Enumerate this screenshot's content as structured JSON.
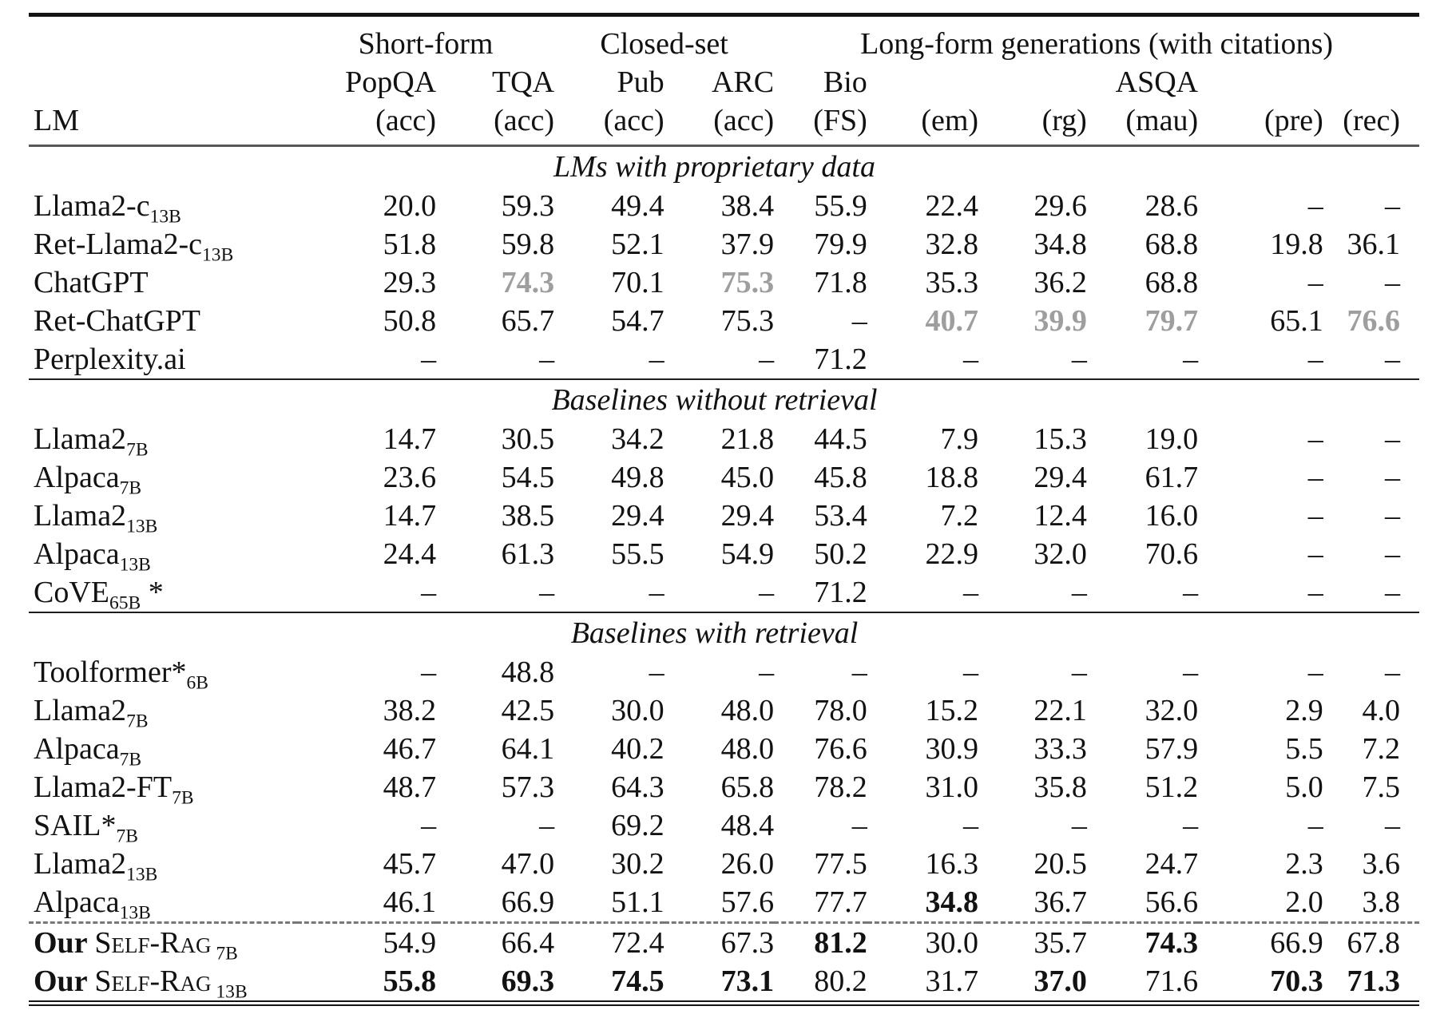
{
  "header": {
    "lm_label": "LM",
    "groups": [
      {
        "label": "Short-form"
      },
      {
        "label": "Closed-set"
      },
      {
        "label": "Long-form generations (with citations)"
      }
    ],
    "datasets": {
      "popqa": "PopQA",
      "tqa": "TQA",
      "pub": "Pub",
      "arc": "ARC",
      "bio": "Bio",
      "asqa": "ASQA"
    },
    "metrics": [
      "(acc)",
      "(acc)",
      "(acc)",
      "(acc)",
      "(FS)",
      "(em)",
      "(rg)",
      "(mau)",
      "(pre)",
      "(rec)"
    ]
  },
  "colors": {
    "gray_value": "#9e9e9e",
    "text": "#121212"
  },
  "sections": [
    {
      "title": "LMs with proprietary data",
      "rows": [
        {
          "name": {
            "label": "Llama2-c",
            "sub": "13B"
          },
          "values": [
            "20.0",
            "59.3",
            "49.4",
            "38.4",
            "55.9",
            "22.4",
            "29.6",
            "28.6",
            "–",
            "–"
          ]
        },
        {
          "name": {
            "label": "Ret-Llama2-c",
            "sub": "13B"
          },
          "values": [
            "51.8",
            "59.8",
            "52.1",
            "37.9",
            "79.9",
            "32.8",
            "34.8",
            "68.8",
            "19.8",
            "36.1"
          ]
        },
        {
          "name": {
            "label": "ChatGPT"
          },
          "values": [
            "29.3",
            "74.3",
            "70.1",
            "75.3",
            "71.8",
            "35.3",
            "36.2",
            "68.8",
            "–",
            "–"
          ],
          "gray": [
            1,
            3
          ]
        },
        {
          "name": {
            "label": "Ret-ChatGPT"
          },
          "values": [
            "50.8",
            "65.7",
            "54.7",
            "75.3",
            "–",
            "40.7",
            "39.9",
            "79.7",
            "65.1",
            "76.6"
          ],
          "gray": [
            5,
            6,
            7,
            9
          ]
        },
        {
          "name": {
            "label": "Perplexity.ai"
          },
          "values": [
            "–",
            "–",
            "–",
            "–",
            "71.2",
            "–",
            "–",
            "–",
            "–",
            "–"
          ]
        }
      ]
    },
    {
      "title": "Baselines without retrieval",
      "rows": [
        {
          "name": {
            "label": "Llama2",
            "sub": "7B"
          },
          "values": [
            "14.7",
            "30.5",
            "34.2",
            "21.8",
            "44.5",
            "7.9",
            "15.3",
            "19.0",
            "–",
            "–"
          ]
        },
        {
          "name": {
            "label": "Alpaca",
            "sub": "7B"
          },
          "values": [
            "23.6",
            "54.5",
            "49.8",
            "45.0",
            "45.8",
            "18.8",
            "29.4",
            "61.7",
            "–",
            "–"
          ]
        },
        {
          "name": {
            "label": "Llama2",
            "sub": "13B"
          },
          "values": [
            "14.7",
            "38.5",
            "29.4",
            "29.4",
            "53.4",
            "7.2",
            "12.4",
            "16.0",
            "–",
            "–"
          ]
        },
        {
          "name": {
            "label": "Alpaca",
            "sub": "13B"
          },
          "values": [
            "24.4",
            "61.3",
            "55.5",
            "54.9",
            "50.2",
            "22.9",
            "32.0",
            "70.6",
            "–",
            "–"
          ]
        },
        {
          "name": {
            "label": "CoVE",
            "sub": "65B",
            "post": " *"
          },
          "values": [
            "–",
            "–",
            "–",
            "–",
            "71.2",
            "–",
            "–",
            "–",
            "–",
            "–"
          ]
        }
      ]
    },
    {
      "title": "Baselines with retrieval",
      "rows": [
        {
          "name": {
            "label": "Toolformer*",
            "sub": "6B"
          },
          "values": [
            "–",
            "48.8",
            "–",
            "–",
            "–",
            "–",
            "–",
            "–",
            "–",
            "–"
          ]
        },
        {
          "name": {
            "label": "Llama2",
            "sub": "7B"
          },
          "values": [
            "38.2",
            "42.5",
            "30.0",
            "48.0",
            "78.0",
            "15.2",
            "22.1",
            "32.0",
            "2.9",
            "4.0"
          ]
        },
        {
          "name": {
            "label": "Alpaca",
            "sub": "7B"
          },
          "values": [
            "46.7",
            "64.1",
            "40.2",
            "48.0",
            "76.6",
            "30.9",
            "33.3",
            "57.9",
            "5.5",
            "7.2"
          ]
        },
        {
          "name": {
            "label": "Llama2-FT",
            "sub": "7B"
          },
          "values": [
            "48.7",
            "57.3",
            "64.3",
            "65.8",
            "78.2",
            "31.0",
            "35.8",
            "51.2",
            "5.0",
            "7.5"
          ]
        },
        {
          "name": {
            "label": "SAIL*",
            "sub": "7B"
          },
          "values": [
            "–",
            "–",
            "69.2",
            "48.4",
            "–",
            "–",
            "–",
            "–",
            "–",
            "–"
          ]
        },
        {
          "name": {
            "label": "Llama2",
            "sub": "13B"
          },
          "values": [
            "45.7",
            "47.0",
            "30.2",
            "26.0",
            "77.5",
            "16.3",
            "20.5",
            "24.7",
            "2.3",
            "3.6"
          ]
        },
        {
          "name": {
            "label": "Alpaca",
            "sub": "13B"
          },
          "values": [
            "46.1",
            "66.9",
            "51.1",
            "57.6",
            "77.7",
            "34.8",
            "36.7",
            "56.6",
            "2.0",
            "3.8"
          ],
          "bold": [
            5
          ]
        },
        {
          "name": {
            "pre": "Our ",
            "sc": "Self-Rag",
            "sub": " 7B"
          },
          "dashed": true,
          "values": [
            "54.9",
            "66.4",
            "72.4",
            "67.3",
            "81.2",
            "30.0",
            "35.7",
            "74.3",
            "66.9",
            "67.8"
          ],
          "bold": [
            4,
            7
          ]
        },
        {
          "name": {
            "pre": "Our ",
            "sc": "Self-Rag",
            "sub": " 13B"
          },
          "values": [
            "55.8",
            "69.3",
            "74.5",
            "73.1",
            "80.2",
            "31.7",
            "37.0",
            "71.6",
            "70.3",
            "71.3"
          ],
          "bold": [
            0,
            1,
            2,
            3,
            6,
            8,
            9
          ]
        }
      ]
    }
  ]
}
